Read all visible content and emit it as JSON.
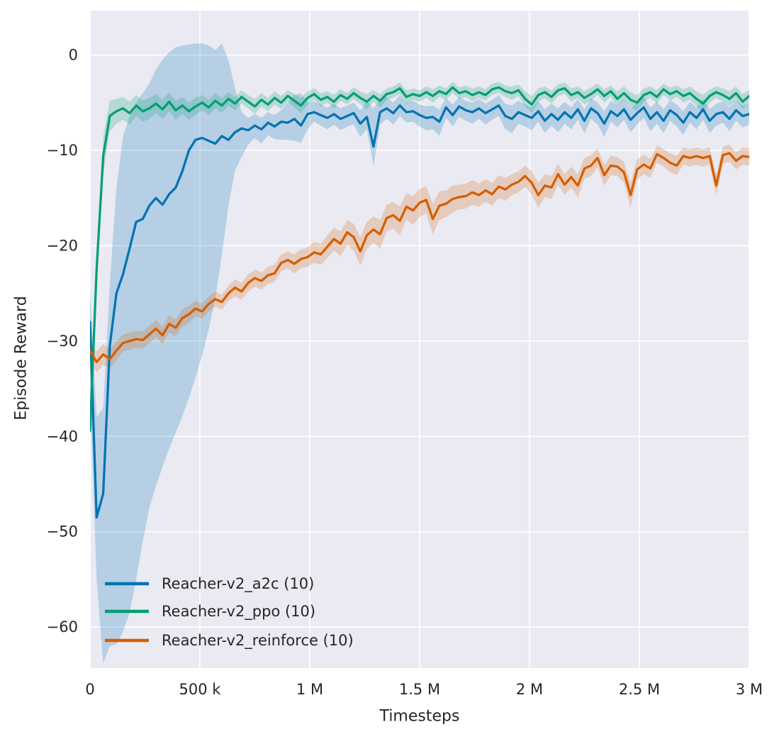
{
  "figure": {
    "background": "#ffffff",
    "plot_background": "#eaeaf2",
    "grid_color": "#ffffff",
    "text_color": "#262626"
  },
  "chart_data": {
    "type": "line",
    "title": "",
    "xlabel": "Timesteps",
    "ylabel": "Episode Reward",
    "grid": true,
    "legend_position": "lower left",
    "xlim": [
      0,
      3000000
    ],
    "ylim": [
      -64.3,
      4.65
    ],
    "x_step": 30000,
    "x_ticks": [
      {
        "value": 0,
        "label": "0"
      },
      {
        "value": 500000,
        "label": "500 k"
      },
      {
        "value": 1000000,
        "label": "1 M"
      },
      {
        "value": 1500000,
        "label": "1.5 M"
      },
      {
        "value": 2000000,
        "label": "2 M"
      },
      {
        "value": 2500000,
        "label": "2.5 M"
      },
      {
        "value": 3000000,
        "label": "3 M"
      }
    ],
    "y_ticks": [
      {
        "value": 0,
        "label": "0"
      },
      {
        "value": -10,
        "label": "−10"
      },
      {
        "value": -20,
        "label": "−20"
      },
      {
        "value": -30,
        "label": "−30"
      },
      {
        "value": -40,
        "label": "−40"
      },
      {
        "value": -50,
        "label": "−50"
      },
      {
        "value": -60,
        "label": "−60"
      }
    ],
    "series": [
      {
        "name": "Reacher-v2_a2c (10)",
        "color": "#0173b2",
        "values": [
          -28,
          -48.5,
          -46,
          -30.5,
          -25,
          -23,
          -20.3,
          -17.5,
          -17.2,
          -15.8,
          -15,
          -15.7,
          -14.6,
          -13.9,
          -12.2,
          -10,
          -8.9,
          -8.7,
          -9,
          -9.3,
          -8.5,
          -8.9,
          -8.1,
          -7.7,
          -7.9,
          -7.4,
          -7.8,
          -7.1,
          -7.5,
          -7,
          -7.1,
          -6.7,
          -7.4,
          -6.2,
          -6,
          -6.3,
          -6.6,
          -6.2,
          -6.7,
          -6.4,
          -6.1,
          -7.2,
          -6.5,
          -9.6,
          -6,
          -5.6,
          -6.1,
          -5.3,
          -6,
          -5.9,
          -6.3,
          -6.6,
          -6.5,
          -7,
          -5.5,
          -6.3,
          -5.4,
          -5.8,
          -6,
          -5.6,
          -6.1,
          -5.7,
          -5.3,
          -6.4,
          -6.7,
          -6,
          -6.3,
          -6.6,
          -5.9,
          -6.9,
          -6.2,
          -6.8,
          -6,
          -6.6,
          -5.7,
          -6.9,
          -5.6,
          -6.1,
          -7.2,
          -5.9,
          -6.4,
          -5.7,
          -6.8,
          -6.1,
          -5.5,
          -6.7,
          -6,
          -6.9,
          -5.8,
          -6.3,
          -7.1,
          -6,
          -6.6,
          -5.7,
          -6.9,
          -6.2,
          -6,
          -6.7,
          -5.8,
          -6.4,
          -6.2
        ],
        "band_hi": [
          -24.5,
          -38,
          -37,
          -24,
          -14,
          -8.5,
          -6.5,
          -5,
          -4,
          -3,
          -1.5,
          -0.5,
          0.3,
          0.8,
          1,
          1.1,
          1.2,
          1.2,
          1,
          0.5,
          1.2,
          -0.5,
          -3.5,
          -6,
          -6.6,
          -6.2,
          -6.6,
          -6,
          -6.3,
          -5.8,
          -5,
          -4.2,
          -4,
          -5,
          -4.9,
          -5.2,
          -5.5,
          -5.1,
          -5.6,
          -5.3,
          -5,
          -5.8,
          -4.8,
          -5.6,
          -4.7,
          -4.4,
          -5,
          -4.2,
          -5,
          -4.8,
          -5.2,
          -5.4,
          -5.3,
          -5.7,
          -4.5,
          -5.2,
          -4.4,
          -4.8,
          -5,
          -4.6,
          -5.1,
          -4.7,
          -4.2,
          -5.1,
          -5.3,
          -4.8,
          -5.2,
          -5.5,
          -4.8,
          -5.7,
          -5.1,
          -5.6,
          -4.9,
          -5.5,
          -4.6,
          -5.7,
          -4.5,
          -5,
          -5.9,
          -4.8,
          -5.3,
          -4.6,
          -5.6,
          -5,
          -4.4,
          -5.5,
          -4.9,
          -5.7,
          -4.7,
          -5.2,
          -5.9,
          -4.9,
          -5.5,
          -4.6,
          -5.7,
          -5.1,
          -4.9,
          -5.5,
          -4.7,
          -5.3,
          -5.1
        ],
        "band_lo": [
          -36,
          -55,
          -63.8,
          -62,
          -61.8,
          -60.5,
          -58.5,
          -55,
          -51,
          -47.5,
          -45.2,
          -43.2,
          -41.3,
          -39.6,
          -37.9,
          -36,
          -33.8,
          -31.5,
          -28.8,
          -25.5,
          -21,
          -15.8,
          -12.1,
          -10.7,
          -9.4,
          -8.7,
          -9.3,
          -8.4,
          -8.8,
          -8.9,
          -8.9,
          -9,
          -9.2,
          -7.8,
          -7,
          -7.4,
          -7.8,
          -7.3,
          -7.9,
          -7.5,
          -7.3,
          -8.6,
          -7.8,
          -11.6,
          -7.3,
          -6.7,
          -7.3,
          -6.4,
          -7.1,
          -7,
          -7.5,
          -7.9,
          -7.8,
          -8.5,
          -6.6,
          -7.5,
          -6.5,
          -6.9,
          -7.2,
          -6.7,
          -7.3,
          -6.8,
          -6.4,
          -7.8,
          -8.2,
          -7.2,
          -7.5,
          -7.9,
          -7,
          -8.2,
          -7.4,
          -8.1,
          -7.2,
          -7.8,
          -6.8,
          -8.2,
          -6.7,
          -7.3,
          -8.6,
          -7,
          -7.6,
          -6.8,
          -8.1,
          -7.3,
          -6.6,
          -8,
          -7.2,
          -8.2,
          -6.9,
          -7.5,
          -8.4,
          -7.1,
          -7.8,
          -6.8,
          -8.2,
          -7.4,
          -7.1,
          -8,
          -6.9,
          -7.6,
          -7.3
        ]
      },
      {
        "name": "Reacher-v2_ppo (10)",
        "color": "#029e73",
        "values": [
          -39.4,
          -22.5,
          -10.6,
          -6.4,
          -5.9,
          -5.6,
          -6.1,
          -5.3,
          -5.9,
          -5.6,
          -5.1,
          -5.7,
          -4.9,
          -5.8,
          -5.3,
          -5.9,
          -5.4,
          -5,
          -5.5,
          -4.8,
          -5.3,
          -4.6,
          -5.1,
          -4.4,
          -4.9,
          -5.4,
          -4.7,
          -5.2,
          -4.5,
          -5,
          -4.3,
          -4.8,
          -5.3,
          -4.5,
          -4.1,
          -4.7,
          -4.4,
          -4.9,
          -4.2,
          -4.6,
          -4,
          -4.5,
          -4.9,
          -4.3,
          -4.8,
          -4.1,
          -3.9,
          -3.5,
          -4.4,
          -4.1,
          -4.3,
          -3.9,
          -4.3,
          -3.8,
          -4.1,
          -3.4,
          -4,
          -3.8,
          -4.2,
          -3.9,
          -4.2,
          -3.6,
          -3.4,
          -3.8,
          -4,
          -3.7,
          -4.6,
          -5.2,
          -4.2,
          -3.9,
          -4.4,
          -3.7,
          -3.5,
          -4.2,
          -3.9,
          -4.5,
          -4.1,
          -3.6,
          -4.3,
          -3.8,
          -4.6,
          -4,
          -4.7,
          -5,
          -4.2,
          -3.9,
          -4.4,
          -3.6,
          -4.1,
          -3.8,
          -4.3,
          -4,
          -4.6,
          -5.1,
          -4.3,
          -3.9,
          -4.2,
          -4.6,
          -4,
          -4.9,
          -4.3
        ],
        "band_halfwidth": [
          0.5,
          1.6,
          2,
          1.6,
          1.3,
          1.2,
          1.2,
          1.1,
          1.1,
          1.1,
          1,
          1,
          1,
          1,
          0.9,
          0.9,
          0.9,
          0.8,
          0.8,
          0.8,
          0.8,
          0.7,
          0.7,
          0.7,
          0.7,
          0.8,
          0.7,
          0.7,
          0.7,
          0.7,
          0.6,
          0.7,
          0.8,
          0.7,
          0.6,
          0.7,
          0.6,
          0.7,
          0.6,
          0.6,
          0.6,
          0.7,
          0.8,
          0.6,
          0.7,
          0.6,
          0.6,
          0.6,
          0.7,
          0.6,
          0.6,
          0.6,
          0.7,
          0.6,
          0.6,
          0.6,
          0.6,
          0.6,
          0.7,
          0.6,
          0.6,
          0.6,
          0.6,
          0.6,
          0.7,
          0.6,
          0.8,
          0.9,
          0.7,
          0.6,
          0.7,
          0.6,
          0.6,
          0.7,
          0.6,
          0.7,
          0.7,
          0.6,
          0.7,
          0.6,
          0.8,
          0.7,
          0.8,
          0.8,
          0.7,
          0.6,
          0.7,
          0.6,
          0.7,
          0.6,
          0.7,
          0.7,
          0.8,
          0.9,
          0.7,
          0.6,
          0.7,
          0.8,
          0.7,
          0.8,
          0.7
        ]
      },
      {
        "name": "Reacher-v2_reinforce (10)",
        "color": "#d55e00",
        "values": [
          -31,
          -32.2,
          -31.4,
          -31.9,
          -31,
          -30.2,
          -30,
          -29.8,
          -29.9,
          -29.3,
          -28.7,
          -29.4,
          -28.2,
          -28.6,
          -27.6,
          -27.2,
          -26.6,
          -26.9,
          -26.1,
          -25.6,
          -25.9,
          -25,
          -24.4,
          -24.8,
          -23.9,
          -23.4,
          -23.7,
          -23.1,
          -22.9,
          -21.8,
          -21.5,
          -21.9,
          -21.4,
          -21.2,
          -20.7,
          -20.9,
          -20.1,
          -19.3,
          -19.8,
          -18.6,
          -19.1,
          -20.6,
          -18.9,
          -18.3,
          -18.8,
          -17.1,
          -16.8,
          -17.4,
          -15.9,
          -16.3,
          -15.5,
          -15.2,
          -17.2,
          -15.8,
          -15.6,
          -15.1,
          -14.9,
          -14.8,
          -14.4,
          -14.7,
          -14.2,
          -14.6,
          -13.8,
          -14.1,
          -13.6,
          -13.3,
          -12.7,
          -13.4,
          -14.7,
          -13.7,
          -13.9,
          -12.5,
          -13.6,
          -12.8,
          -13.7,
          -11.9,
          -11.6,
          -10.8,
          -12.6,
          -11.6,
          -11.7,
          -12.3,
          -14.7,
          -12,
          -11.5,
          -11.9,
          -10.4,
          -10.8,
          -11.3,
          -11.6,
          -10.6,
          -10.8,
          -10.6,
          -10.8,
          -10.6,
          -13.7,
          -10.5,
          -10.3,
          -11.1,
          -10.6,
          -10.7
        ],
        "band_halfwidth": [
          1,
          1.1,
          1.1,
          1,
          1,
          0.9,
          0.9,
          0.9,
          0.9,
          0.9,
          0.9,
          0.9,
          0.9,
          0.9,
          0.9,
          0.9,
          0.8,
          0.8,
          0.8,
          0.8,
          0.8,
          0.8,
          0.9,
          0.9,
          0.9,
          0.9,
          0.9,
          0.9,
          0.9,
          0.9,
          0.9,
          1,
          1,
          1,
          1.1,
          1.1,
          1.2,
          1.2,
          1.3,
          1.3,
          1.4,
          1.5,
          1.4,
          1.4,
          1.5,
          1.4,
          1.4,
          1.5,
          1.4,
          1.5,
          1.5,
          1.4,
          1.6,
          1.5,
          1.4,
          1.4,
          1.3,
          1.3,
          1.3,
          1.2,
          1.2,
          1.2,
          1.2,
          1.2,
          1.1,
          1.1,
          1.1,
          1.2,
          1.3,
          1.2,
          1.2,
          1.1,
          1.1,
          1.1,
          1.2,
          1.1,
          1.1,
          1,
          1.1,
          1,
          1,
          1.1,
          1.3,
          1.1,
          1,
          1,
          0.9,
          0.9,
          1,
          1,
          0.9,
          0.9,
          0.9,
          0.9,
          0.9,
          1.1,
          0.9,
          0.9,
          0.9,
          0.9,
          0.9
        ]
      }
    ]
  }
}
